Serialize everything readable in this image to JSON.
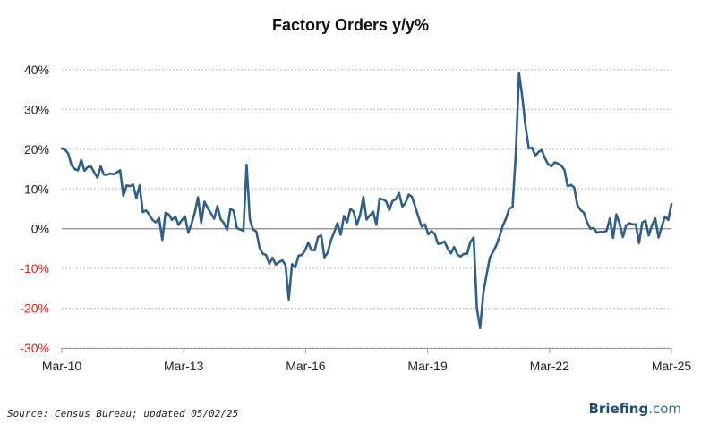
{
  "chart_data": {
    "type": "line",
    "title": "Factory Orders y/y%",
    "xlabel": "",
    "ylabel": "",
    "x_start": "2010-03",
    "x_end": "2025-03",
    "x_ticks": [
      {
        "label": "Mar-10",
        "date": "2010-03"
      },
      {
        "label": "Mar-13",
        "date": "2013-03"
      },
      {
        "label": "Mar-16",
        "date": "2016-03"
      },
      {
        "label": "Mar-19",
        "date": "2019-03"
      },
      {
        "label": "Mar-22",
        "date": "2022-03"
      },
      {
        "label": "Mar-25",
        "date": "2025-03"
      }
    ],
    "y_ticks": [
      {
        "label": "40%",
        "value": 40,
        "negative": false
      },
      {
        "label": "30%",
        "value": 30,
        "negative": false
      },
      {
        "label": "20%",
        "value": 20,
        "negative": false
      },
      {
        "label": "10%",
        "value": 10,
        "negative": false
      },
      {
        "label": "0%",
        "value": 0,
        "negative": false
      },
      {
        "label": "-10%",
        "value": -10,
        "negative": true
      },
      {
        "label": "-20%",
        "value": -20,
        "negative": true
      },
      {
        "label": "-30%",
        "value": -30,
        "negative": true
      }
    ],
    "ylim": [
      -30,
      40
    ],
    "grid": true,
    "series": [
      {
        "color": "#2f5f8a",
        "values": [
          20.2,
          19.9,
          18.9,
          16.0,
          15.0,
          14.7,
          17.3,
          14.6,
          15.5,
          15.7,
          14.2,
          12.8,
          15.7,
          13.6,
          13.6,
          13.9,
          13.7,
          14.2,
          14.7,
          8.3,
          10.9,
          10.7,
          11.1,
          7.7,
          10.9,
          4.2,
          4.6,
          3.5,
          2.2,
          1.6,
          2.7,
          -2.8,
          4.0,
          3.6,
          2.2,
          3.1,
          1.0,
          2.1,
          3.1,
          -1.0,
          1.2,
          4.0,
          7.9,
          1.5,
          6.8,
          5.2,
          3.9,
          2.5,
          5.7,
          2.4,
          1.4,
          -0.3,
          5.0,
          4.5,
          0.2,
          -0.2,
          -0.5,
          16.1,
          2.3,
          -0.2,
          -0.7,
          -4.8,
          -6.3,
          -6.6,
          -8.8,
          -7.3,
          -9.0,
          -8.4,
          -7.9,
          -9.2,
          -17.8,
          -8.9,
          -9.7,
          -6.8,
          -6.6,
          -5.5,
          -3.5,
          -5.4,
          -5.4,
          -2.1,
          -1.7,
          -7.2,
          -6.0,
          -2.9,
          -0.9,
          1.4,
          -1.5,
          3.2,
          1.6,
          5.0,
          4.3,
          1.0,
          3.5,
          8.0,
          2.3,
          3.4,
          4.3,
          1.0,
          7.6,
          7.4,
          6.9,
          4.7,
          7.0,
          7.4,
          9.0,
          5.6,
          6.5,
          8.6,
          8.0,
          5.5,
          2.9,
          0.5,
          1.1,
          -1.4,
          -0.6,
          -1.3,
          -3.8,
          -3.7,
          -3.2,
          -5.0,
          -6.2,
          -4.6,
          -6.5,
          -7.0,
          -6.3,
          -6.3,
          -3.3,
          -2.2,
          -20.0,
          -25.0,
          -16.1,
          -11.5,
          -7.3,
          -5.8,
          -4.2,
          -1.9,
          0.8,
          2.6,
          5.1,
          5.4,
          18.9,
          39.2,
          33.2,
          25.8,
          20.2,
          20.4,
          18.4,
          19.3,
          19.8,
          17.7,
          16.2,
          15.7,
          16.7,
          16.4,
          15.9,
          14.8,
          10.7,
          11.0,
          10.4,
          5.9,
          4.7,
          4.0,
          1.6,
          0.0,
          0.2,
          -1.0,
          -0.8,
          -0.9,
          -0.5,
          2.6,
          -2.3,
          3.6,
          1.3,
          -2.1,
          0.8,
          1.4,
          1.1,
          1.1,
          -3.6,
          1.6,
          2.0,
          -1.7,
          0.9,
          2.6,
          -2.2,
          0.5,
          3.1,
          2.2,
          6.2
        ]
      }
    ]
  },
  "footer": {
    "source": "Source: Census Bureau; updated 05/02/25",
    "brand_main": "Briefing",
    "brand_suffix": ".com"
  },
  "colors": {
    "line": "#2f5f8a",
    "negative_label": "#d9231b",
    "grid": "#bfbfbf",
    "zero_line": "#8c8c8c"
  }
}
